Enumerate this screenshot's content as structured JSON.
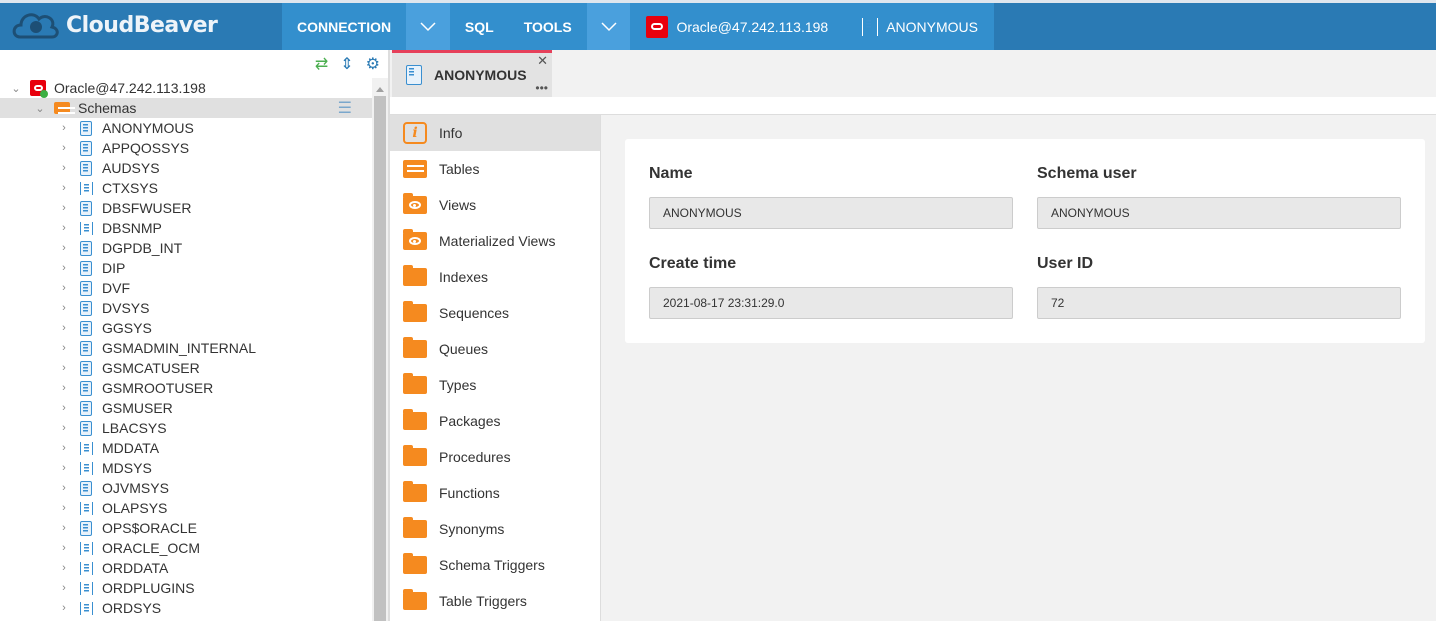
{
  "header": {
    "brand": "CloudBeaver",
    "menu": {
      "connection": "CONNECTION",
      "sql": "SQL",
      "tools": "TOOLS"
    },
    "active_connection": "Oracle@47.242.113.198",
    "active_schema": "ANONYMOUS"
  },
  "navigator": {
    "connection": "Oracle@47.242.113.198",
    "schemas_label": "Schemas",
    "schemas": [
      {
        "name": "ANONYMOUS",
        "icon": "schema-doc"
      },
      {
        "name": "APPQOSSYS",
        "icon": "schema-doc"
      },
      {
        "name": "AUDSYS",
        "icon": "schema-doc"
      },
      {
        "name": "CTXSYS",
        "icon": "schema-bracket"
      },
      {
        "name": "DBSFWUSER",
        "icon": "schema-doc"
      },
      {
        "name": "DBSNMP",
        "icon": "schema-bracket"
      },
      {
        "name": "DGPDB_INT",
        "icon": "schema-doc"
      },
      {
        "name": "DIP",
        "icon": "schema-doc"
      },
      {
        "name": "DVF",
        "icon": "schema-doc"
      },
      {
        "name": "DVSYS",
        "icon": "schema-doc"
      },
      {
        "name": "GGSYS",
        "icon": "schema-doc"
      },
      {
        "name": "GSMADMIN_INTERNAL",
        "icon": "schema-doc"
      },
      {
        "name": "GSMCATUSER",
        "icon": "schema-doc"
      },
      {
        "name": "GSMROOTUSER",
        "icon": "schema-doc"
      },
      {
        "name": "GSMUSER",
        "icon": "schema-doc"
      },
      {
        "name": "LBACSYS",
        "icon": "schema-doc"
      },
      {
        "name": "MDDATA",
        "icon": "schema-bracket"
      },
      {
        "name": "MDSYS",
        "icon": "schema-bracket"
      },
      {
        "name": "OJVMSYS",
        "icon": "schema-doc"
      },
      {
        "name": "OLAPSYS",
        "icon": "schema-bracket"
      },
      {
        "name": "OPS$ORACLE",
        "icon": "schema-doc"
      },
      {
        "name": "ORACLE_OCM",
        "icon": "schema-bracket"
      },
      {
        "name": "ORDDATA",
        "icon": "schema-bracket"
      },
      {
        "name": "ORDPLUGINS",
        "icon": "schema-bracket"
      },
      {
        "name": "ORDSYS",
        "icon": "schema-bracket"
      }
    ]
  },
  "tab": {
    "title": "ANONYMOUS"
  },
  "object_nav": [
    {
      "label": "Info",
      "icon": "info",
      "active": true
    },
    {
      "label": "Tables",
      "icon": "table"
    },
    {
      "label": "Views",
      "icon": "eye-folder"
    },
    {
      "label": "Materialized Views",
      "icon": "eye-folder"
    },
    {
      "label": "Indexes",
      "icon": "folder"
    },
    {
      "label": "Sequences",
      "icon": "folder"
    },
    {
      "label": "Queues",
      "icon": "folder"
    },
    {
      "label": "Types",
      "icon": "folder"
    },
    {
      "label": "Packages",
      "icon": "folder"
    },
    {
      "label": "Procedures",
      "icon": "folder"
    },
    {
      "label": "Functions",
      "icon": "folder"
    },
    {
      "label": "Synonyms",
      "icon": "folder"
    },
    {
      "label": "Schema Triggers",
      "icon": "folder"
    },
    {
      "label": "Table Triggers",
      "icon": "folder"
    }
  ],
  "properties": {
    "name": {
      "label": "Name",
      "value": "ANONYMOUS"
    },
    "schema_user": {
      "label": "Schema user",
      "value": "ANONYMOUS"
    },
    "create_time": {
      "label": "Create time",
      "value": "2021-08-17 23:31:29.0"
    },
    "user_id": {
      "label": "User ID",
      "value": "72"
    }
  },
  "colors": {
    "header": "#2a7ab4",
    "menu": "#338fcd",
    "accent": "#f58a1f",
    "tab_indicator": "#e6405a",
    "oracle": "#e8000d"
  }
}
